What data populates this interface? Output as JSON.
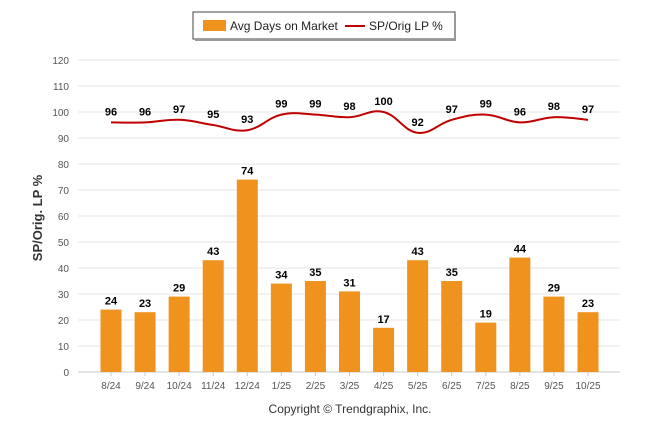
{
  "chart_data": {
    "type": "bar",
    "categories": [
      "8/24",
      "9/24",
      "10/24",
      "11/24",
      "12/24",
      "1/25",
      "2/25",
      "3/25",
      "4/25",
      "5/25",
      "6/25",
      "7/25",
      "8/25",
      "9/25",
      "10/25"
    ],
    "series": [
      {
        "name": "Avg Days on Market",
        "kind": "bar",
        "color": "#f0921e",
        "values": [
          24,
          23,
          29,
          43,
          74,
          34,
          35,
          31,
          17,
          43,
          35,
          19,
          44,
          29,
          23
        ]
      },
      {
        "name": "SP/Orig LP %",
        "kind": "line",
        "color": "#c00000",
        "values": [
          96,
          96,
          97,
          95,
          93,
          99,
          99,
          98,
          100,
          92,
          97,
          99,
          96,
          98,
          97
        ]
      }
    ],
    "title": "",
    "xlabel": "",
    "ylabel": "SP/Orig. LP %",
    "ylim": [
      0,
      120
    ],
    "yticks": [
      0,
      10,
      20,
      30,
      40,
      50,
      60,
      70,
      80,
      90,
      100,
      110,
      120
    ],
    "grid": true,
    "legend_position": "top-center"
  },
  "footer": {
    "credit": "Copyright © Trendgraphix, Inc."
  }
}
